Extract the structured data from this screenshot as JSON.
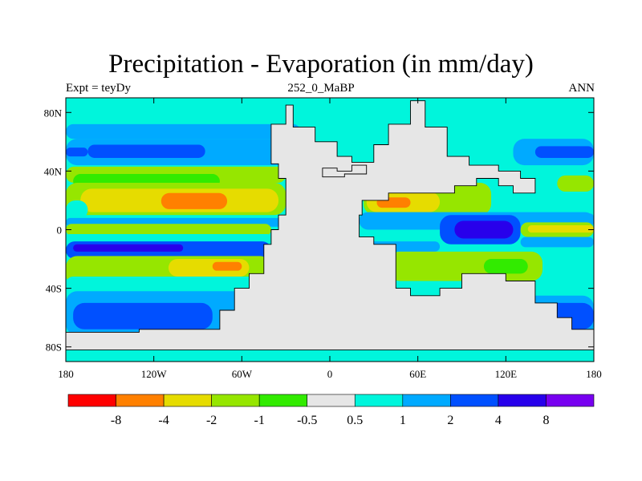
{
  "chart_data": {
    "type": "heatmap",
    "title": "Precipitation - Evaporation (in mm/day)",
    "subtitle_left": "Expt = teyDy",
    "subtitle_center": "252_0_MaBP",
    "subtitle_right": "ANN",
    "x_ticks": [
      {
        "value": -180,
        "label": "180"
      },
      {
        "value": -120,
        "label": "120W"
      },
      {
        "value": -60,
        "label": "60W"
      },
      {
        "value": 0,
        "label": "0"
      },
      {
        "value": 60,
        "label": "60E"
      },
      {
        "value": 120,
        "label": "120E"
      },
      {
        "value": 180,
        "label": "180"
      }
    ],
    "y_ticks": [
      {
        "value": 80,
        "label": "80N"
      },
      {
        "value": 40,
        "label": "40N"
      },
      {
        "value": 0,
        "label": "0"
      },
      {
        "value": -40,
        "label": "40S"
      },
      {
        "value": -80,
        "label": "80S"
      }
    ],
    "xlim": [
      -180,
      180
    ],
    "ylim": [
      -90,
      90
    ],
    "colorbar": {
      "placement": "bottom",
      "colors": [
        "#ff0000",
        "#ff8000",
        "#e6dc00",
        "#96e600",
        "#32eb00",
        "#e6e6e6",
        "#00f5dc",
        "#00aaff",
        "#0050ff",
        "#2800eb",
        "#7800f0"
      ],
      "labels": [
        "-8",
        "-4",
        "-2",
        "-1",
        "-0.5",
        "0.5",
        "1",
        "2",
        "4",
        "8"
      ]
    },
    "field": {
      "background_level": 6,
      "bands": [
        {
          "lat": [
            72,
            90
          ],
          "lon": [
            -180,
            180
          ],
          "level": 6
        },
        {
          "lat": [
            62,
            72
          ],
          "lon": [
            -180,
            -20
          ],
          "level": 7
        },
        {
          "lat": [
            44,
            62
          ],
          "lon": [
            -180,
            -10
          ],
          "level": 7
        },
        {
          "lat": [
            49,
            58
          ],
          "lon": [
            -165,
            -85
          ],
          "level": 8
        },
        {
          "lat": [
            50,
            56
          ],
          "lon": [
            -180,
            -165
          ],
          "level": 8
        },
        {
          "lat": [
            44,
            62
          ],
          "lon": [
            125,
            180
          ],
          "level": 7
        },
        {
          "lat": [
            49,
            57
          ],
          "lon": [
            140,
            180
          ],
          "level": 8
        },
        {
          "lat": [
            40,
            46
          ],
          "lon": [
            -10,
            30
          ],
          "level": 3
        },
        {
          "lat": [
            40,
            44
          ],
          "lon": [
            5,
            25
          ],
          "level": 4
        },
        {
          "lat": [
            32,
            43
          ],
          "lon": [
            -180,
            -30
          ],
          "level": 3
        },
        {
          "lat": [
            28,
            38
          ],
          "lon": [
            -175,
            -75
          ],
          "level": 4
        },
        {
          "lat": [
            26,
            37
          ],
          "lon": [
            155,
            180
          ],
          "level": 3
        },
        {
          "lat": [
            10,
            32
          ],
          "lon": [
            -180,
            -30
          ],
          "level": 3
        },
        {
          "lat": [
            12,
            28
          ],
          "lon": [
            -170,
            -35
          ],
          "level": 2
        },
        {
          "lat": [
            14,
            25
          ],
          "lon": [
            -115,
            -70
          ],
          "level": 1
        },
        {
          "lat": [
            10,
            32
          ],
          "lon": [
            23,
            110
          ],
          "level": 3
        },
        {
          "lat": [
            12,
            26
          ],
          "lon": [
            25,
            75
          ],
          "level": 2
        },
        {
          "lat": [
            15,
            22
          ],
          "lon": [
            32,
            55
          ],
          "level": 1
        },
        {
          "lat": [
            7,
            20
          ],
          "lon": [
            -180,
            -165
          ],
          "level": 6
        },
        {
          "lat": [
            2,
            8
          ],
          "lon": [
            -180,
            -30
          ],
          "level": 7
        },
        {
          "lat": [
            -4,
            4
          ],
          "lon": [
            -180,
            -40
          ],
          "level": 3
        },
        {
          "lat": [
            -8,
            -3
          ],
          "lon": [
            -180,
            -40
          ],
          "level": 6
        },
        {
          "lat": [
            -20,
            -8
          ],
          "lon": [
            -180,
            -40
          ],
          "level": 8
        },
        {
          "lat": [
            -15,
            -10
          ],
          "lon": [
            -175,
            -100
          ],
          "level": 9
        },
        {
          "lat": [
            -38,
            -18
          ],
          "lon": [
            -180,
            -40
          ],
          "level": 3
        },
        {
          "lat": [
            -32,
            -20
          ],
          "lon": [
            -110,
            -55
          ],
          "level": 2
        },
        {
          "lat": [
            -28,
            -22
          ],
          "lon": [
            -80,
            -60
          ],
          "level": 1
        },
        {
          "lat": [
            0,
            12
          ],
          "lon": [
            20,
            180
          ],
          "level": 7
        },
        {
          "lat": [
            -10,
            10
          ],
          "lon": [
            75,
            130
          ],
          "level": 8
        },
        {
          "lat": [
            -6,
            6
          ],
          "lon": [
            85,
            125
          ],
          "level": 9
        },
        {
          "lat": [
            -5,
            5
          ],
          "lon": [
            130,
            180
          ],
          "level": 3
        },
        {
          "lat": [
            -2,
            3
          ],
          "lon": [
            135,
            180
          ],
          "level": 2
        },
        {
          "lat": [
            6,
            11
          ],
          "lon": [
            130,
            180
          ],
          "level": 7
        },
        {
          "lat": [
            -12,
            -5
          ],
          "lon": [
            130,
            180
          ],
          "level": 7
        },
        {
          "lat": [
            -15,
            -8
          ],
          "lon": [
            25,
            75
          ],
          "level": 7
        },
        {
          "lat": [
            -35,
            -15
          ],
          "lon": [
            40,
            145
          ],
          "level": 3
        },
        {
          "lat": [
            -30,
            -20
          ],
          "lon": [
            105,
            135
          ],
          "level": 4
        },
        {
          "lat": [
            -42,
            -32
          ],
          "lon": [
            -180,
            -40
          ],
          "level": 6
        },
        {
          "lat": [
            -72,
            -42
          ],
          "lon": [
            -180,
            -45
          ],
          "level": 7
        },
        {
          "lat": [
            -68,
            -50
          ],
          "lon": [
            -175,
            -80
          ],
          "level": 8
        },
        {
          "lat": [
            -72,
            -45
          ],
          "lon": [
            -45,
            180
          ],
          "level": 7
        },
        {
          "lat": [
            -68,
            -50
          ],
          "lon": [
            90,
            180
          ],
          "level": 8
        },
        {
          "lat": [
            -82,
            -72
          ],
          "lon": [
            -180,
            180
          ],
          "level": 6
        }
      ],
      "continents": [
        {
          "level": 5,
          "points": [
            [
              -25,
              85
            ],
            [
              -25,
              70
            ],
            [
              -10,
              70
            ],
            [
              -10,
              60
            ],
            [
              0,
              60
            ],
            [
              5,
              60
            ],
            [
              5,
              50
            ],
            [
              15,
              50
            ],
            [
              15,
              46
            ],
            [
              30,
              46
            ],
            [
              30,
              58
            ],
            [
              40,
              58
            ],
            [
              40,
              72
            ],
            [
              55,
              72
            ],
            [
              55,
              88
            ],
            [
              65,
              88
            ],
            [
              65,
              70
            ],
            [
              80,
              70
            ],
            [
              80,
              50
            ],
            [
              95,
              50
            ],
            [
              95,
              44
            ],
            [
              115,
              44
            ],
            [
              115,
              40
            ],
            [
              130,
              40
            ],
            [
              130,
              35
            ],
            [
              140,
              35
            ],
            [
              140,
              25
            ],
            [
              125,
              25
            ],
            [
              125,
              30
            ],
            [
              115,
              30
            ],
            [
              115,
              35
            ],
            [
              100,
              35
            ],
            [
              100,
              30
            ],
            [
              85,
              30
            ],
            [
              85,
              25
            ],
            [
              40,
              25
            ],
            [
              40,
              20
            ],
            [
              22,
              20
            ],
            [
              22,
              10
            ],
            [
              20,
              10
            ],
            [
              20,
              -5
            ],
            [
              30,
              -5
            ],
            [
              30,
              -10
            ],
            [
              45,
              -10
            ],
            [
              45,
              -40
            ],
            [
              55,
              -40
            ],
            [
              55,
              -45
            ],
            [
              75,
              -45
            ],
            [
              75,
              -40
            ],
            [
              90,
              -40
            ],
            [
              90,
              -30
            ],
            [
              120,
              -30
            ],
            [
              120,
              -35
            ],
            [
              140,
              -35
            ],
            [
              140,
              -50
            ],
            [
              155,
              -50
            ],
            [
              155,
              -60
            ],
            [
              165,
              -60
            ],
            [
              165,
              -68
            ],
            [
              180,
              -68
            ],
            [
              180,
              -82
            ],
            [
              -180,
              -82
            ],
            [
              -180,
              -70
            ],
            [
              -130,
              -70
            ],
            [
              -130,
              -68
            ],
            [
              -75,
              -68
            ],
            [
              -75,
              -55
            ],
            [
              -65,
              -55
            ],
            [
              -65,
              -40
            ],
            [
              -55,
              -40
            ],
            [
              -55,
              -30
            ],
            [
              -45,
              -30
            ],
            [
              -45,
              -10
            ],
            [
              -40,
              -10
            ],
            [
              -40,
              0
            ],
            [
              -35,
              0
            ],
            [
              -35,
              10
            ],
            [
              -30,
              10
            ],
            [
              -30,
              35
            ],
            [
              -35,
              35
            ],
            [
              -35,
              45
            ],
            [
              -40,
              45
            ],
            [
              -40,
              60
            ],
            [
              -40,
              72
            ],
            [
              -30,
              72
            ],
            [
              -30,
              85
            ]
          ]
        },
        {
          "level": 5,
          "points": [
            [
              -5,
              42
            ],
            [
              -5,
              36
            ],
            [
              10,
              36
            ],
            [
              10,
              38
            ],
            [
              25,
              38
            ],
            [
              25,
              44
            ],
            [
              15,
              44
            ],
            [
              15,
              40
            ],
            [
              5,
              40
            ],
            [
              5,
              42
            ]
          ]
        }
      ]
    }
  }
}
